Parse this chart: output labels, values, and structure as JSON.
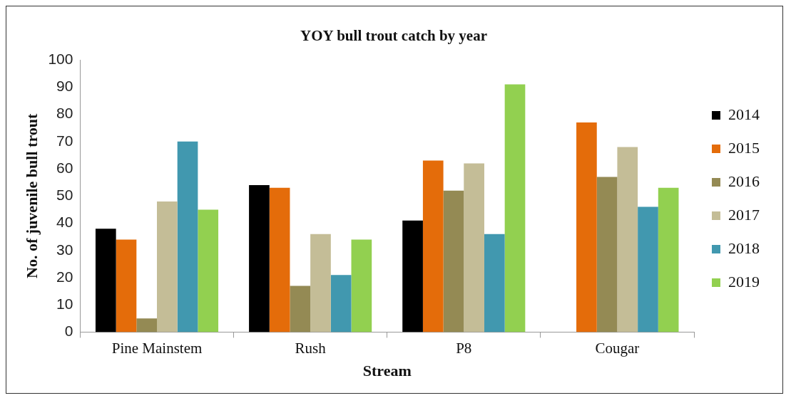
{
  "chart_data": {
    "type": "bar",
    "title": "YOY bull trout catch by year",
    "xlabel": "Stream",
    "ylabel": "No. of juvenile bull trout",
    "categories": [
      "Pine Mainstem",
      "Rush",
      "P8",
      "Cougar"
    ],
    "series": [
      {
        "name": "2014",
        "color": "#000000",
        "values": [
          38,
          54,
          41,
          null
        ]
      },
      {
        "name": "2015",
        "color": "#e46c0a",
        "values": [
          34,
          53,
          63,
          77
        ]
      },
      {
        "name": "2016",
        "color": "#948a54",
        "values": [
          5,
          17,
          52,
          57
        ]
      },
      {
        "name": "2017",
        "color": "#c4bd97",
        "values": [
          48,
          36,
          62,
          68
        ]
      },
      {
        "name": "2018",
        "color": "#4198af",
        "values": [
          70,
          21,
          36,
          46
        ]
      },
      {
        "name": "2019",
        "color": "#92d050",
        "values": [
          45,
          34,
          91,
          53
        ]
      }
    ],
    "ylim": [
      0,
      100
    ],
    "yticks": [
      0,
      10,
      20,
      30,
      40,
      50,
      60,
      70,
      80,
      90,
      100
    ],
    "grid": false,
    "legend": "right"
  }
}
